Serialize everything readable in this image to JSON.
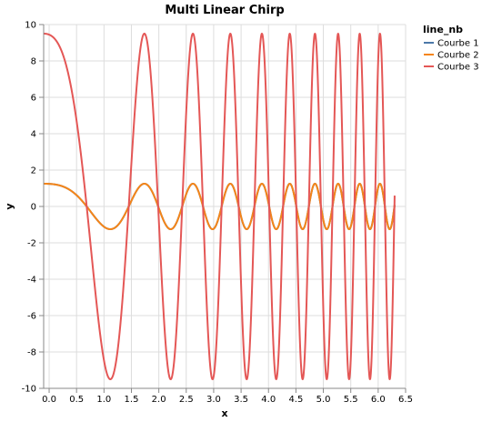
{
  "chart_data": {
    "type": "line",
    "title": "Multi Linear Chirp",
    "xlabel": "x",
    "ylabel": "y",
    "xlim": [
      -0.1,
      6.5
    ],
    "ylim": [
      -10,
      10
    ],
    "x_ticks": [
      "0.0",
      "0.5",
      "1.0",
      "1.5",
      "2.0",
      "2.5",
      "3.0",
      "3.5",
      "4.0",
      "4.5",
      "5.0",
      "5.5",
      "6.0",
      "6.5"
    ],
    "y_ticks": [
      "10",
      "8",
      "6",
      "4",
      "2",
      "0",
      "-2",
      "-4",
      "-6",
      "-8",
      "-10"
    ],
    "grid": true,
    "legend": {
      "title": "line_nb",
      "position": "top-right"
    },
    "x_range": [
      -0.1,
      6.3
    ],
    "series": [
      {
        "name": "Courbe 1",
        "color": "#4c78a8",
        "amplitude": 1.25,
        "freq_start": 0.15,
        "freq_end": 2.9
      },
      {
        "name": "Courbe 2",
        "color": "#f58518",
        "amplitude": 1.25,
        "freq_start": 0.15,
        "freq_end": 2.9
      },
      {
        "name": "Courbe 3",
        "color": "#e45756",
        "amplitude": 9.5,
        "freq_start": 0.15,
        "freq_end": 2.9
      }
    ]
  }
}
